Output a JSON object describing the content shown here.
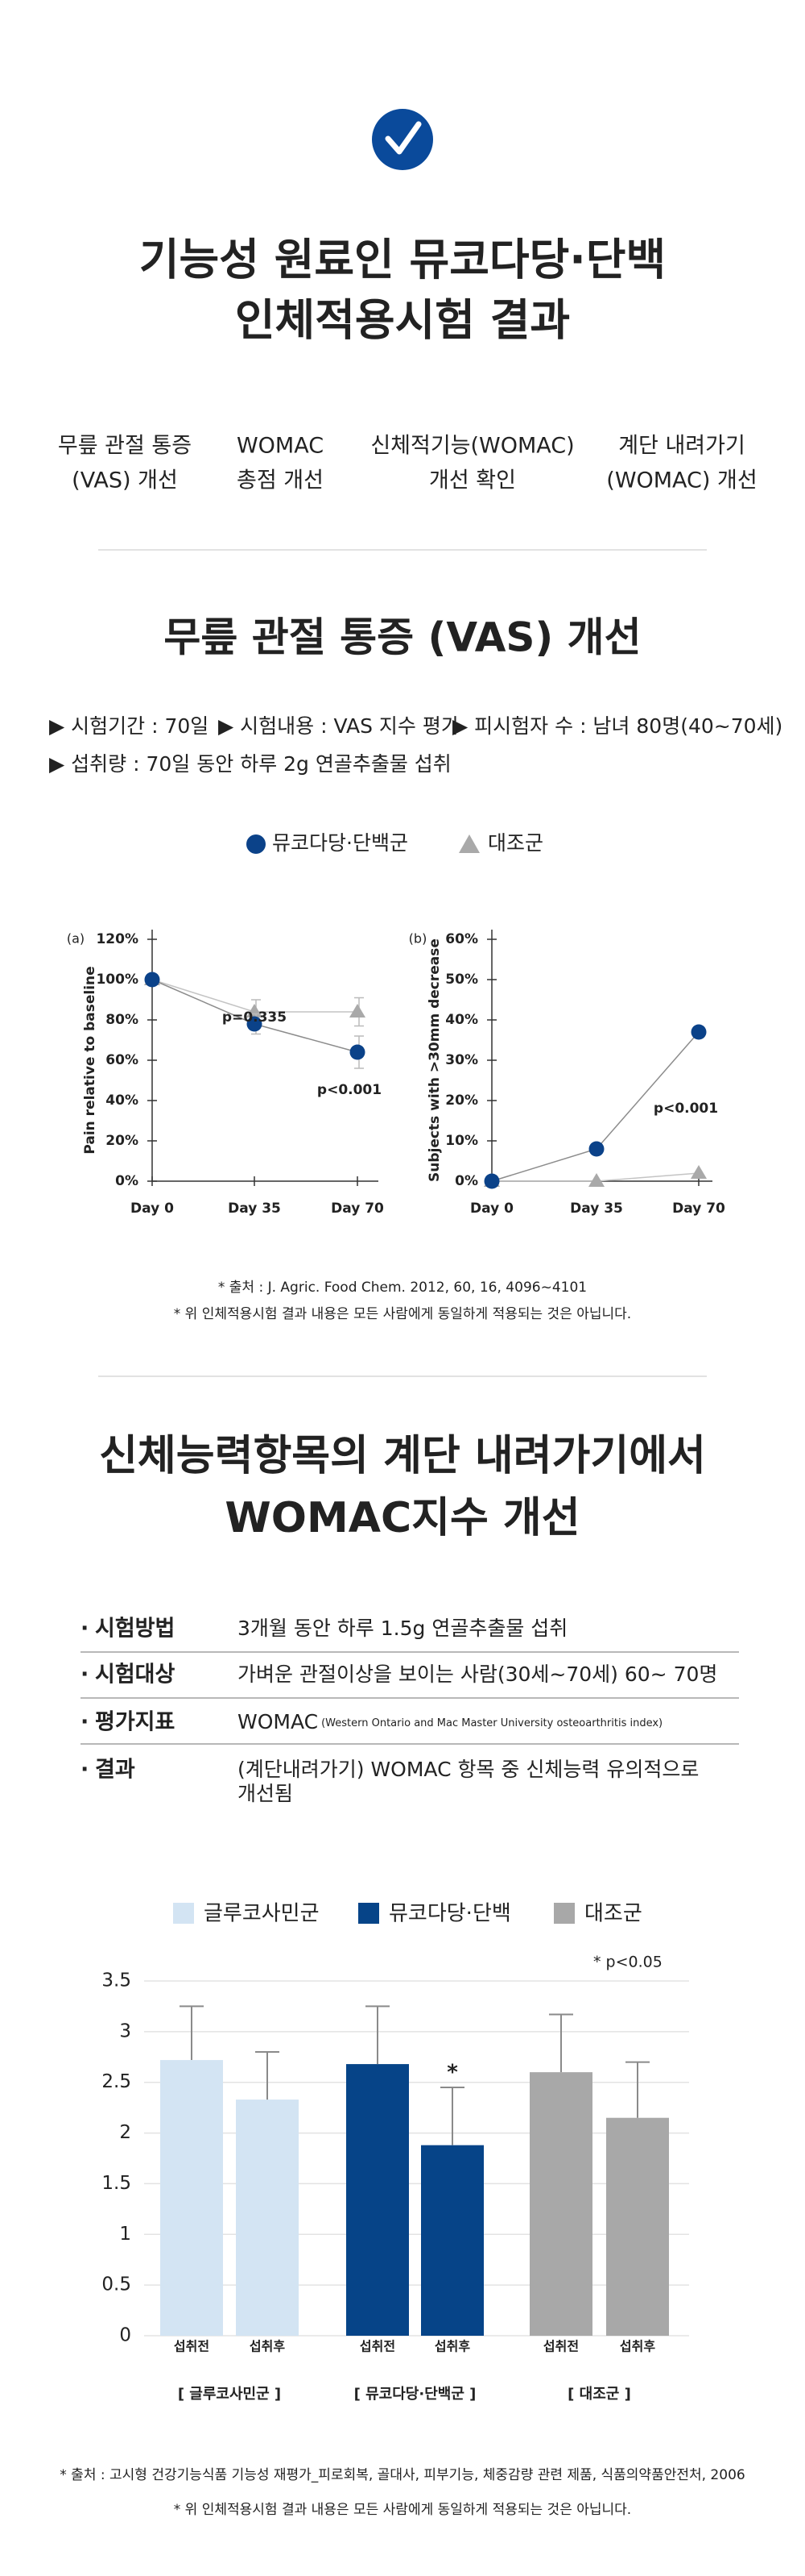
{
  "header": {
    "title": [
      "기능성 원료인 뮤코다당·단백",
      "인체적용시험 결과"
    ]
  },
  "features": [
    [
      "무릎 관절 통증",
      "(VAS) 개선"
    ],
    [
      "WOMAC",
      "총점 개선"
    ],
    [
      "신체적기능(WOMAC)",
      "개선 확인"
    ],
    [
      "계단 내려가기",
      "(WOMAC) 개선"
    ]
  ],
  "section1": {
    "title": "무릎 관절 통증 (VAS) 개선",
    "bullets": [
      "▶ 시험기간 : 70일",
      "▶ 시험내용 : VAS 지수 평가",
      "▶ 피시험자 수 : 남녀 80명(40~70세)",
      "▶ 섭취량 : 70일 동안 하루 2g 연골추출물 섭취"
    ],
    "source": "* 출처 : J. Agric. Food Chem. 2012, 60, 16, 4096~4101",
    "note": "* 위 인체적용시험 결과 내용은 모든 사람에게 동일하게 적용되는 것은 아닙니다."
  },
  "section2": {
    "title": [
      "신체능력항목의 계단 내려가기에서",
      "WOMAC지수 개선"
    ],
    "table": [
      [
        "시험방법",
        "3개월 동안 하루 1.5g  연골추출물 섭취"
      ],
      [
        "시험대상",
        "가벼운 관절이상을 보이는 사람(30세~70세) 60~ 70명"
      ],
      [
        "평가지표",
        "WOMAC",
        "(Western Ontario and Mac Master University osteoarthritis index)"
      ],
      [
        "결과",
        "(계단내려가기) WOMAC 항목 중 신체능력 유의적으로",
        "개선됨"
      ]
    ],
    "source": "* 출처 : 고시형 건강기능식품 기능성 재평가_피로회복, 골대사, 피부기능, 체중감량 관련 제품, 식품의약품안전처, 2006",
    "note": "* 위 인체적용시험 결과 내용은 모든 사람에게 동일하게 적용되는 것은 아닙니다."
  },
  "chart_data": [
    {
      "type": "line",
      "panel_label": "(a)",
      "ylabel": "Pain relative to baseline",
      "categories": [
        "Day 0",
        "Day 35",
        "Day 70"
      ],
      "ylim": [
        0,
        120
      ],
      "yticks": [
        {
          "value": 0,
          "label": "0%"
        },
        {
          "value": 20,
          "label": "20%"
        },
        {
          "value": 40,
          "label": "40%"
        },
        {
          "value": 60,
          "label": "60%"
        },
        {
          "value": 80,
          "label": "80%"
        },
        {
          "value": 100,
          "label": "100%"
        },
        {
          "value": 120,
          "label": "120%"
        }
      ],
      "series": [
        {
          "name": "뮤코다당·단백군",
          "color": "#0b4289",
          "marker": "circle",
          "values": [
            100,
            78,
            64
          ],
          "errors": [
            null,
            5,
            8
          ]
        },
        {
          "name": "대조군",
          "color": "#a9a9a9",
          "marker": "triangle",
          "values": [
            100,
            84,
            84
          ],
          "errors": [
            null,
            6,
            7
          ]
        }
      ],
      "annotations": [
        "p=0.335",
        "p<0.001"
      ]
    },
    {
      "type": "line",
      "panel_label": "(b)",
      "ylabel": "Subjects with >30mm decrease",
      "categories": [
        "Day 0",
        "Day 35",
        "Day 70"
      ],
      "ylim": [
        0,
        60
      ],
      "yticks": [
        {
          "value": 0,
          "label": "0%"
        },
        {
          "value": 10,
          "label": "10%"
        },
        {
          "value": 20,
          "label": "20%"
        },
        {
          "value": 30,
          "label": "30%"
        },
        {
          "value": 40,
          "label": "40%"
        },
        {
          "value": 50,
          "label": "50%"
        },
        {
          "value": 60,
          "label": "60%"
        }
      ],
      "series": [
        {
          "name": "뮤코다당·단백군",
          "color": "#0b4289",
          "marker": "circle",
          "values": [
            0,
            8,
            37
          ]
        },
        {
          "name": "대조군",
          "color": "#a9a9a9",
          "marker": "triangle",
          "values": [
            0,
            0,
            2
          ]
        }
      ],
      "annotations": [
        "p<0.001"
      ]
    },
    {
      "type": "bar",
      "categories": [
        "섭취전",
        "섭취후",
        "섭취전",
        "섭취후",
        "섭취전",
        "섭취후"
      ],
      "group_labels": [
        "[ 글루코사민군 ]",
        "[ 뮤코다당·단백군 ]",
        "[ 대조군 ]"
      ],
      "ylim": [
        0,
        3.5
      ],
      "yticks": [
        0,
        0.5,
        1,
        1.5,
        2,
        2.5,
        3,
        3.5
      ],
      "grid": true,
      "series": [
        {
          "name": "글루코사민군",
          "color": "#d3e4f3",
          "values": [
            2.72,
            2.33,
            null,
            null,
            null,
            null
          ],
          "errors": [
            0.53,
            0.47,
            null,
            null,
            null,
            null
          ]
        },
        {
          "name": "뮤코다당·단백",
          "color": "#064488",
          "values": [
            null,
            null,
            2.68,
            1.88,
            null,
            null
          ],
          "errors": [
            null,
            null,
            0.57,
            0.57,
            null,
            null
          ]
        },
        {
          "name": "대조군",
          "color": "#a8a8a8",
          "values": [
            null,
            null,
            null,
            null,
            2.6,
            2.15
          ],
          "errors": [
            null,
            null,
            null,
            null,
            0.57,
            0.55
          ]
        }
      ],
      "star_label": "*",
      "significance_note": "*  p<0.05"
    }
  ]
}
